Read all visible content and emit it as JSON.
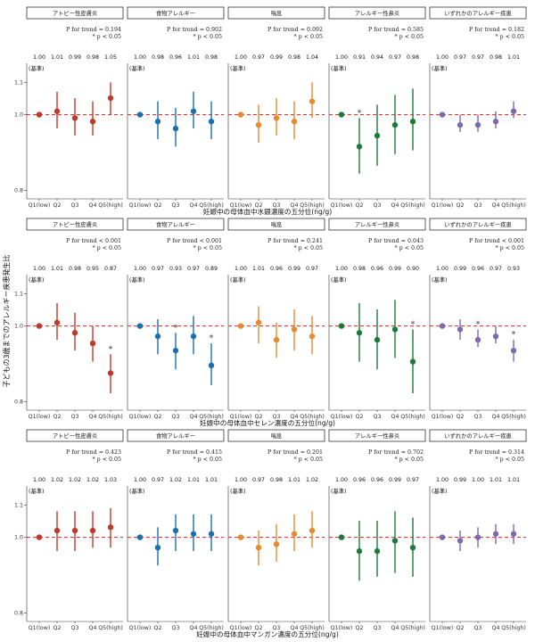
{
  "chart_data": {
    "type": "scatter",
    "y_title": "子どもの3歳までのアレルギー疾患発生比",
    "reference_label": "(基準)",
    "categories": [
      "Q1(low)",
      "Q2",
      "Q3",
      "Q4",
      "Q5(high)"
    ],
    "yscale": "log",
    "ylim": [
      0.78,
      1.22
    ],
    "yticks": [
      0.8,
      1.0,
      1.1
    ],
    "reference_line": 1.0,
    "outcomes": [
      {
        "name": "アトピー性皮膚炎",
        "color": "#c1392b"
      },
      {
        "name": "食物アレルギー",
        "color": "#1f6fad"
      },
      {
        "name": "喘息",
        "color": "#e8892b"
      },
      {
        "name": "アレルギー性鼻炎",
        "color": "#1e7a3a"
      },
      {
        "name": "いずれかのアレルギー疾患",
        "color": "#7e6aaf"
      }
    ],
    "rows": [
      {
        "xlabel": "妊娠中の母体血中水銀濃度の五分位(ng/g)",
        "panels": [
          {
            "trend": "P for trend = 0.194",
            "sig": "* p < 0.05",
            "labels": [
              "1.00",
              "1.01",
              "0.99",
              "0.98",
              "1.05"
            ],
            "est": [
              1.0,
              1.01,
              0.99,
              0.98,
              1.05
            ],
            "lo": [
              1.0,
              0.96,
              0.94,
              0.94,
              1.0
            ],
            "hi": [
              1.0,
              1.07,
              1.05,
              1.04,
              1.1
            ],
            "stars": [
              false,
              false,
              false,
              false,
              false
            ]
          },
          {
            "trend": "P for trend = 0.902",
            "sig": "* p < 0.05",
            "labels": [
              "1.00",
              "0.98",
              "0.96",
              "1.01",
              "0.98"
            ],
            "est": [
              1.0,
              0.98,
              0.96,
              1.01,
              0.98
            ],
            "lo": [
              1.0,
              0.93,
              0.91,
              0.96,
              0.93
            ],
            "hi": [
              1.0,
              1.04,
              1.02,
              1.07,
              1.04
            ],
            "stars": [
              false,
              false,
              false,
              false,
              false
            ]
          },
          {
            "trend": "P for trend = 0.092",
            "sig": "* p < 0.05",
            "labels": [
              "1.00",
              "0.97",
              "0.99",
              "0.98",
              "1.04"
            ],
            "est": [
              1.0,
              0.97,
              0.99,
              0.98,
              1.04
            ],
            "lo": [
              1.0,
              0.92,
              0.94,
              0.93,
              0.99
            ],
            "hi": [
              1.0,
              1.03,
              1.05,
              1.04,
              1.1
            ],
            "stars": [
              false,
              false,
              false,
              false,
              false
            ]
          },
          {
            "trend": "P for trend = 0.585",
            "sig": "* p < 0.05",
            "labels": [
              "1.00",
              "0.91",
              "0.94",
              "0.97",
              "0.98"
            ],
            "est": [
              1.0,
              0.91,
              0.94,
              0.97,
              0.98
            ],
            "lo": [
              1.0,
              0.84,
              0.86,
              0.89,
              0.9
            ],
            "hi": [
              1.0,
              0.99,
              1.03,
              1.06,
              1.08
            ],
            "stars": [
              false,
              true,
              false,
              false,
              false
            ]
          },
          {
            "trend": "P for trend = 0.182",
            "sig": "* p < 0.05",
            "labels": [
              "1.00",
              "0.97",
              "0.97",
              "0.98",
              "1.01"
            ],
            "est": [
              1.0,
              0.97,
              0.97,
              0.98,
              1.01
            ],
            "lo": [
              1.0,
              0.95,
              0.95,
              0.96,
              0.99
            ],
            "hi": [
              1.0,
              1.0,
              1.0,
              1.01,
              1.04
            ],
            "stars": [
              false,
              false,
              false,
              false,
              false
            ]
          }
        ]
      },
      {
        "xlabel": "妊娠中の母体血中セレン濃度の五分位(ng/g)",
        "panels": [
          {
            "trend": "P for trend < 0.001",
            "sig": "* p < 0.05",
            "labels": [
              "1.00",
              "1.01",
              "0.98",
              "0.95",
              "0.87"
            ],
            "est": [
              1.0,
              1.01,
              0.98,
              0.95,
              0.87
            ],
            "lo": [
              1.0,
              0.96,
              0.93,
              0.9,
              0.82
            ],
            "hi": [
              1.0,
              1.07,
              1.04,
              1.0,
              0.92
            ],
            "stars": [
              false,
              false,
              false,
              false,
              true
            ]
          },
          {
            "trend": "P for trend < 0.001",
            "sig": "* p < 0.05",
            "labels": [
              "1.00",
              "0.97",
              "0.93",
              "0.97",
              "0.89"
            ],
            "est": [
              1.0,
              0.97,
              0.93,
              0.97,
              0.89
            ],
            "lo": [
              1.0,
              0.92,
              0.88,
              0.92,
              0.84
            ],
            "hi": [
              1.0,
              1.02,
              0.98,
              1.03,
              0.95
            ],
            "stars": [
              false,
              false,
              true,
              false,
              true
            ]
          },
          {
            "trend": "P for trend = 0.241",
            "sig": "* p < 0.05",
            "labels": [
              "1.00",
              "1.01",
              "0.96",
              "0.99",
              "0.97"
            ],
            "est": [
              1.0,
              1.01,
              0.96,
              0.99,
              0.97
            ],
            "lo": [
              1.0,
              0.95,
              0.91,
              0.93,
              0.92
            ],
            "hi": [
              1.0,
              1.06,
              1.01,
              1.05,
              1.03
            ],
            "stars": [
              false,
              false,
              false,
              false,
              false
            ]
          },
          {
            "trend": "P for trend = 0.043",
            "sig": "* p < 0.05",
            "labels": [
              "1.00",
              "0.98",
              "0.96",
              "0.99",
              "0.90"
            ],
            "est": [
              1.0,
              0.98,
              0.96,
              0.99,
              0.9
            ],
            "lo": [
              1.0,
              0.9,
              0.88,
              0.91,
              0.82
            ],
            "hi": [
              1.0,
              1.07,
              1.05,
              1.08,
              0.99
            ],
            "stars": [
              false,
              false,
              false,
              false,
              true
            ]
          },
          {
            "trend": "P for trend < 0.001",
            "sig": "* p < 0.05",
            "labels": [
              "1.00",
              "0.99",
              "0.96",
              "0.97",
              "0.93"
            ],
            "est": [
              1.0,
              0.99,
              0.96,
              0.97,
              0.93
            ],
            "lo": [
              1.0,
              0.96,
              0.94,
              0.95,
              0.9
            ],
            "hi": [
              1.0,
              1.02,
              0.99,
              1.0,
              0.96
            ],
            "stars": [
              false,
              false,
              true,
              false,
              true
            ]
          }
        ]
      },
      {
        "xlabel": "妊娠中の母体血中マンガン濃度の五分位(ng/g)",
        "panels": [
          {
            "trend": "P for trend = 0.423",
            "sig": "* p < 0.05",
            "labels": [
              "1.00",
              "1.02",
              "1.02",
              "1.02",
              "1.03"
            ],
            "est": [
              1.0,
              1.02,
              1.02,
              1.02,
              1.03
            ],
            "lo": [
              1.0,
              0.96,
              0.96,
              0.97,
              0.97
            ],
            "hi": [
              1.0,
              1.08,
              1.08,
              1.08,
              1.09
            ],
            "stars": [
              false,
              false,
              false,
              false,
              false
            ]
          },
          {
            "trend": "P for trend = 0.415",
            "sig": "* p < 0.05",
            "labels": [
              "1.00",
              "0.97",
              "1.02",
              "1.01",
              "1.01"
            ],
            "est": [
              1.0,
              0.97,
              1.02,
              1.01,
              1.01
            ],
            "lo": [
              1.0,
              0.92,
              0.96,
              0.96,
              0.96
            ],
            "hi": [
              1.0,
              1.03,
              1.07,
              1.07,
              1.07
            ],
            "stars": [
              false,
              false,
              false,
              false,
              false
            ]
          },
          {
            "trend": "P for trend = 0.201",
            "sig": "* p < 0.05",
            "labels": [
              "1.00",
              "0.97",
              "0.98",
              "1.01",
              "1.02"
            ],
            "est": [
              1.0,
              0.97,
              0.98,
              1.01,
              1.02
            ],
            "lo": [
              1.0,
              0.92,
              0.93,
              0.96,
              0.97
            ],
            "hi": [
              1.0,
              1.02,
              1.04,
              1.07,
              1.08
            ],
            "stars": [
              false,
              false,
              false,
              false,
              false
            ]
          },
          {
            "trend": "P for trend = 0.702",
            "sig": "* p < 0.05",
            "labels": [
              "1.00",
              "0.96",
              "0.96",
              "0.99",
              "0.97"
            ],
            "est": [
              1.0,
              0.96,
              0.96,
              0.99,
              0.97
            ],
            "lo": [
              1.0,
              0.88,
              0.89,
              0.9,
              0.89
            ],
            "hi": [
              1.0,
              1.05,
              1.05,
              1.08,
              1.06
            ],
            "stars": [
              false,
              false,
              false,
              false,
              false
            ]
          },
          {
            "trend": "P for trend = 0.314",
            "sig": "* p < 0.05",
            "labels": [
              "1.00",
              "0.99",
              "1.00",
              "1.01",
              "1.01"
            ],
            "est": [
              1.0,
              0.99,
              1.0,
              1.01,
              1.01
            ],
            "lo": [
              1.0,
              0.96,
              0.97,
              0.98,
              0.98
            ],
            "hi": [
              1.0,
              1.02,
              1.03,
              1.04,
              1.04
            ],
            "stars": [
              false,
              false,
              false,
              false,
              false
            ]
          }
        ]
      }
    ]
  }
}
